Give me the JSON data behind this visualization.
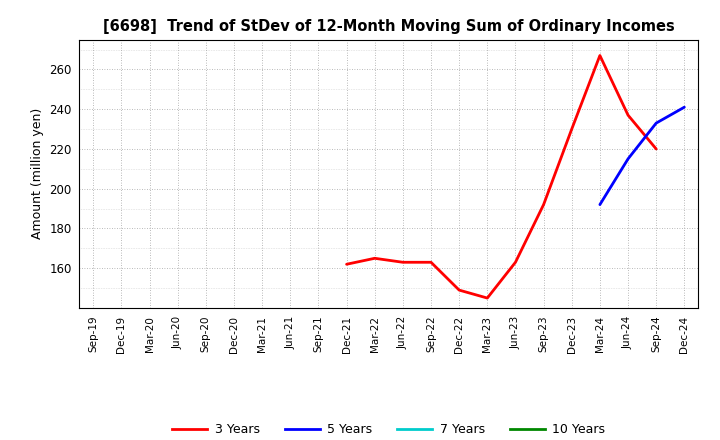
{
  "title": "[6698]  Trend of StDev of 12-Month Moving Sum of Ordinary Incomes",
  "ylabel": "Amount (million yen)",
  "background_color": "#ffffff",
  "grid_color": "#999999",
  "ylim": [
    140,
    275
  ],
  "yticks": [
    160,
    180,
    200,
    220,
    240,
    260
  ],
  "x_labels": [
    "Sep-19",
    "Dec-19",
    "Mar-20",
    "Jun-20",
    "Sep-20",
    "Dec-20",
    "Mar-21",
    "Jun-21",
    "Sep-21",
    "Dec-21",
    "Mar-22",
    "Jun-22",
    "Sep-22",
    "Dec-22",
    "Mar-23",
    "Jun-23",
    "Sep-23",
    "Dec-23",
    "Mar-24",
    "Jun-24",
    "Sep-24",
    "Dec-24"
  ],
  "series_3y": {
    "label": "3 Years",
    "color": "#ff0000",
    "x": [
      "Dec-21",
      "Mar-22",
      "Jun-22",
      "Sep-22",
      "Dec-22",
      "Mar-23",
      "Jun-23",
      "Sep-23",
      "Dec-23",
      "Mar-24",
      "Jun-24",
      "Sep-24"
    ],
    "y": [
      162,
      165,
      163,
      163,
      149,
      145,
      163,
      192,
      230,
      267,
      237,
      220
    ]
  },
  "series_5y": {
    "label": "5 Years",
    "color": "#0000ff",
    "x": [
      "Mar-24",
      "Jun-24",
      "Sep-24",
      "Dec-24"
    ],
    "y": [
      192,
      215,
      233,
      241
    ]
  },
  "series_7y": {
    "label": "7 Years",
    "color": "#00cccc",
    "x": [],
    "y": []
  },
  "series_10y": {
    "label": "10 Years",
    "color": "#008800",
    "x": [],
    "y": []
  },
  "legend_colors": [
    "#ff0000",
    "#0000ff",
    "#00cccc",
    "#008800"
  ],
  "legend_labels": [
    "3 Years",
    "5 Years",
    "7 Years",
    "10 Years"
  ]
}
